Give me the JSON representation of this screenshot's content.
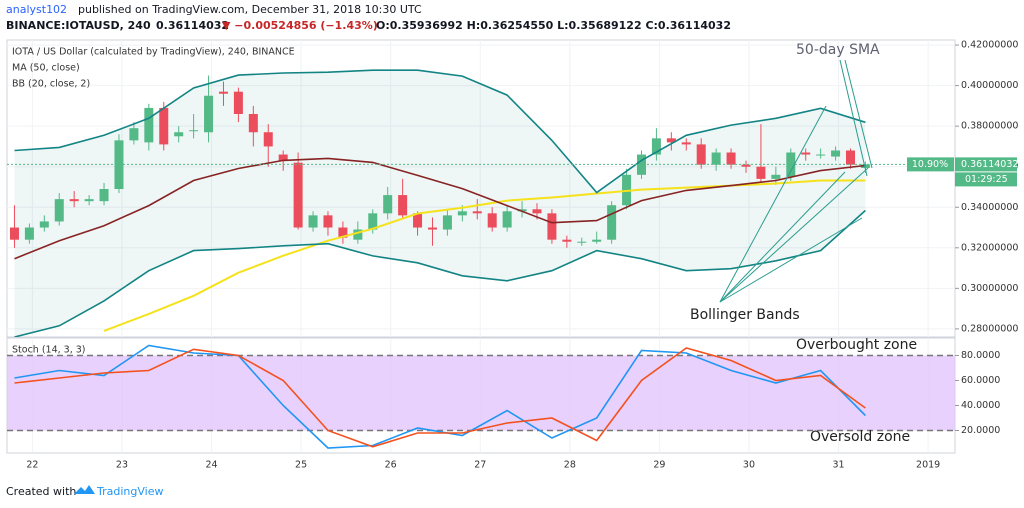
{
  "header": {
    "author": "analyst102",
    "published": "published on TradingView.com, December 31, 2018 10:30 UTC",
    "symbol": "BINANCE:IOTAUSD, 240",
    "price": "0.36114032",
    "change": "▼ −0.00524856 (−1.43%)",
    "ohlc": "O:0.35936992 H:0.36254550 L:0.35689122 C:0.36114032"
  },
  "footer": {
    "created": "Created with",
    "brand": "TradingView"
  },
  "chart_data": [
    {
      "type": "candlestick",
      "title": "IOTA / US Dollar (calculated by TradingView), 240, BINANCE",
      "legend": [
        "MA (50, close)",
        "BB (20, close, 2)"
      ],
      "up_color": "#53b987",
      "down_color": "#eb4d5c",
      "xlim": [
        -0.5,
        63
      ],
      "xticks": [
        {
          "value": 1.2,
          "label": "22"
        },
        {
          "value": 7.2,
          "label": "23"
        },
        {
          "value": 13.2,
          "label": "24"
        },
        {
          "value": 19.2,
          "label": "25"
        },
        {
          "value": 25.2,
          "label": "26"
        },
        {
          "value": 31.2,
          "label": "27"
        },
        {
          "value": 37.2,
          "label": "28"
        },
        {
          "value": 43.2,
          "label": "29"
        },
        {
          "value": 49.2,
          "label": "30"
        },
        {
          "value": 55.2,
          "label": "31"
        },
        {
          "value": 61.2,
          "label": "2019"
        }
      ],
      "ylim": [
        0.276,
        0.4225
      ],
      "yticks": [
        {
          "value": 0.28,
          "label": "0.28000000"
        },
        {
          "value": 0.3,
          "label": "0.30000000"
        },
        {
          "value": 0.32,
          "label": "0.32000000"
        },
        {
          "value": 0.34,
          "label": "0.34000000"
        },
        {
          "value": 0.36,
          "label": "0.36000000"
        },
        {
          "value": 0.38,
          "label": "0.38000000"
        },
        {
          "value": 0.4,
          "label": "0.40000000"
        },
        {
          "value": 0.42,
          "label": "0.42000000"
        }
      ],
      "open": [
        0.33,
        0.324,
        0.33,
        0.333,
        0.344,
        0.343,
        0.343,
        0.349,
        0.373,
        0.372,
        0.389,
        0.375,
        0.378,
        0.377,
        0.397,
        0.397,
        0.386,
        0.377,
        0.366,
        0.362,
        0.33,
        0.336,
        0.33,
        0.324,
        0.329,
        0.337,
        0.346,
        0.337,
        0.33,
        0.329,
        0.336,
        0.338,
        0.337,
        0.33,
        0.338,
        0.339,
        0.337,
        0.324,
        0.323,
        0.323,
        0.324,
        0.341,
        0.356,
        0.366,
        0.374,
        0.372,
        0.371,
        0.361,
        0.367,
        0.361,
        0.36,
        0.354,
        0.355,
        0.367,
        0.366,
        0.365,
        0.368,
        0.35936992
      ],
      "high": [
        0.341,
        0.332,
        0.336,
        0.347,
        0.348,
        0.346,
        0.352,
        0.376,
        0.382,
        0.391,
        0.392,
        0.38,
        0.386,
        0.405,
        0.402,
        0.399,
        0.39,
        0.381,
        0.368,
        0.367,
        0.338,
        0.338,
        0.333,
        0.333,
        0.339,
        0.35,
        0.354,
        0.338,
        0.335,
        0.339,
        0.341,
        0.344,
        0.34,
        0.341,
        0.343,
        0.342,
        0.339,
        0.326,
        0.325,
        0.328,
        0.343,
        0.359,
        0.368,
        0.379,
        0.377,
        0.374,
        0.374,
        0.369,
        0.369,
        0.363,
        0.381,
        0.36,
        0.369,
        0.369,
        0.369,
        0.37,
        0.369,
        0.3625455
      ],
      "low": [
        0.32,
        0.322,
        0.328,
        0.331,
        0.34,
        0.341,
        0.341,
        0.347,
        0.371,
        0.368,
        0.368,
        0.372,
        0.374,
        0.372,
        0.39,
        0.382,
        0.37,
        0.36,
        0.358,
        0.329,
        0.328,
        0.326,
        0.322,
        0.322,
        0.327,
        0.334,
        0.334,
        0.326,
        0.321,
        0.326,
        0.333,
        0.334,
        0.328,
        0.328,
        0.335,
        0.334,
        0.322,
        0.32,
        0.321,
        0.322,
        0.322,
        0.339,
        0.354,
        0.363,
        0.368,
        0.368,
        0.359,
        0.358,
        0.359,
        0.357,
        0.352,
        0.351,
        0.353,
        0.363,
        0.364,
        0.363,
        0.359,
        0.35689122
      ],
      "close": [
        0.324,
        0.33,
        0.333,
        0.344,
        0.343,
        0.344,
        0.349,
        0.373,
        0.379,
        0.389,
        0.371,
        0.377,
        0.378,
        0.395,
        0.396,
        0.386,
        0.377,
        0.37,
        0.363,
        0.33,
        0.336,
        0.33,
        0.325,
        0.329,
        0.337,
        0.346,
        0.336,
        0.33,
        0.329,
        0.336,
        0.338,
        0.337,
        0.33,
        0.338,
        0.339,
        0.337,
        0.324,
        0.323,
        0.323,
        0.324,
        0.341,
        0.356,
        0.366,
        0.374,
        0.372,
        0.371,
        0.361,
        0.367,
        0.361,
        0.36,
        0.354,
        0.356,
        0.367,
        0.366,
        0.366,
        0.368,
        0.361,
        0.36114032
      ],
      "line_x": [
        0,
        3,
        6,
        9,
        12,
        15,
        18,
        21,
        24,
        27,
        30,
        33,
        36,
        39,
        42,
        45,
        48,
        51,
        54,
        57
      ],
      "series": [
        {
          "color": "#f5e21b",
          "values": [
            null,
            null,
            0.279,
            0.2874,
            0.2963,
            0.3077,
            0.3161,
            0.3235,
            0.3294,
            0.3369,
            0.3398,
            0.3433,
            0.3448,
            0.3468,
            0.3487,
            0.3497,
            0.3507,
            0.3517,
            0.3532,
            0.3532
          ]
        },
        {
          "color": "#138484",
          "values": [
            0.368,
            0.3695,
            0.3755,
            0.3839,
            0.3988,
            0.4052,
            0.4062,
            0.4066,
            0.4076,
            0.4076,
            0.4047,
            0.3953,
            0.373,
            0.3473,
            0.3631,
            0.3755,
            0.3805,
            0.3839,
            0.3888,
            0.3819
          ]
        },
        {
          "color": "#872323",
          "values": [
            0.3146,
            0.3235,
            0.3309,
            0.3408,
            0.3532,
            0.3591,
            0.3631,
            0.3641,
            0.3621,
            0.3557,
            0.3492,
            0.3408,
            0.3324,
            0.3334,
            0.3433,
            0.3483,
            0.3507,
            0.3532,
            0.3581,
            0.3606
          ]
        },
        {
          "color": "#138484",
          "values": [
            0.276,
            0.2815,
            0.2938,
            0.3087,
            0.3186,
            0.3196,
            0.321,
            0.322,
            0.316,
            0.3126,
            0.3062,
            0.3037,
            0.3087,
            0.3186,
            0.3146,
            0.3087,
            0.3097,
            0.3136,
            0.3186,
            0.3384
          ]
        }
      ],
      "band_fill": "#138484",
      "change_label": "10.90%",
      "price_label": "0.36114032",
      "countdown": "01:29:25",
      "annotations": [
        "50-day SMA",
        "Bollinger Bands"
      ]
    },
    {
      "type": "line",
      "title": "Stoch (14, 3, 3)",
      "x": [
        0,
        3,
        6,
        9,
        12,
        15,
        18,
        21,
        24,
        27,
        30,
        33,
        36,
        39,
        42,
        45,
        48,
        51,
        54,
        57
      ],
      "ylim": [
        2,
        94
      ],
      "yticks": [
        {
          "value": 20,
          "label": "20.0000"
        },
        {
          "value": 40,
          "label": "40.0000"
        },
        {
          "value": 60,
          "label": "60.0000"
        },
        {
          "value": 80,
          "label": "80.0000"
        }
      ],
      "band": [
        20,
        80
      ],
      "band_color": "#e2c6fb",
      "series": [
        {
          "color": "#2196f3",
          "values": [
            62,
            68,
            64,
            88,
            82,
            80,
            40,
            6,
            8,
            22,
            16,
            36,
            14,
            30,
            84,
            82,
            68,
            58,
            68,
            32
          ]
        },
        {
          "color": "#f4511e",
          "values": [
            58,
            62,
            66,
            68,
            85,
            80,
            60,
            20,
            7,
            18,
            18,
            26,
            30,
            12,
            60,
            86,
            76,
            60,
            64,
            38
          ]
        }
      ],
      "annotations": [
        "Overbought zone",
        "Oversold zone"
      ]
    }
  ]
}
